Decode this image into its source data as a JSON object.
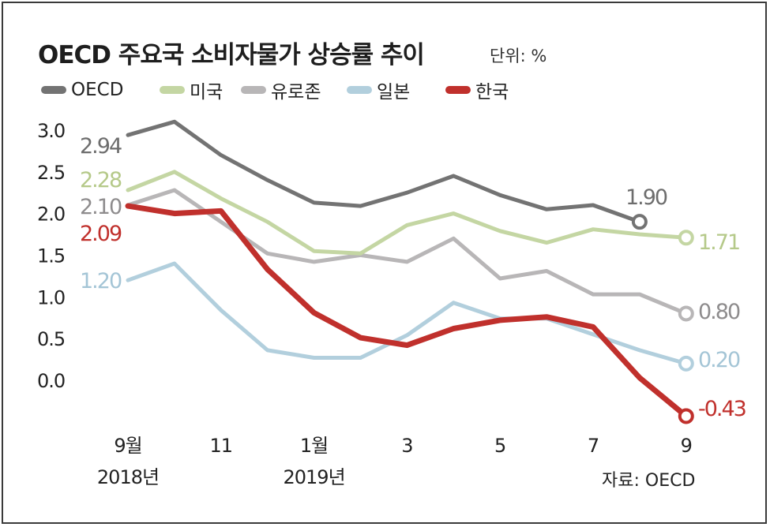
{
  "header": {
    "title": "OECD 주요국 소비자물가 상승률 추이",
    "unit": "단위: %"
  },
  "footer": {
    "source": "자료: OECD"
  },
  "chart_data": {
    "type": "line",
    "title": "OECD 주요국 소비자물가 상승률 추이",
    "unit": "단위: %",
    "x": [
      "2018-09",
      "2018-10",
      "2018-11",
      "2018-12",
      "2019-01",
      "2019-02",
      "2019-03",
      "2019-04",
      "2019-05",
      "2019-06",
      "2019-07",
      "2019-08",
      "2019-09"
    ],
    "x_tick_labels": [
      {
        "index": 0,
        "lines": [
          "9월",
          "2018년"
        ]
      },
      {
        "index": 2,
        "lines": [
          "11"
        ]
      },
      {
        "index": 4,
        "lines": [
          "1월",
          "2019년"
        ]
      },
      {
        "index": 6,
        "lines": [
          "3"
        ]
      },
      {
        "index": 8,
        "lines": [
          "5"
        ]
      },
      {
        "index": 10,
        "lines": [
          "7"
        ]
      },
      {
        "index": 12,
        "lines": [
          "9"
        ]
      }
    ],
    "ylim": [
      -0.4,
      3.2
    ],
    "y_ticks": [
      0.0,
      0.5,
      1.0,
      1.5,
      2.0,
      2.5,
      3.0
    ],
    "y_tick_labels": [
      "0.0",
      "0.5",
      "1.0",
      "1.5",
      "2.0",
      "2.5",
      "3.0"
    ],
    "grid": false,
    "legend_position": "top-left",
    "series": [
      {
        "name": "OECD",
        "color": "#737373",
        "values": [
          2.94,
          3.1,
          2.7,
          2.4,
          2.13,
          2.09,
          2.25,
          2.45,
          2.22,
          2.05,
          2.1,
          1.9,
          null
        ],
        "start_label": "2.94",
        "end_label": "1.90"
      },
      {
        "name": "미국",
        "color": "#c4d6a3",
        "values": [
          2.28,
          2.5,
          2.18,
          1.9,
          1.55,
          1.52,
          1.86,
          2.0,
          1.79,
          1.65,
          1.81,
          1.75,
          1.71
        ],
        "start_label": "2.28",
        "end_label": "1.71"
      },
      {
        "name": "유로존",
        "color": "#b8b6b7",
        "values": [
          2.1,
          2.28,
          1.9,
          1.52,
          1.42,
          1.5,
          1.42,
          1.7,
          1.22,
          1.31,
          1.03,
          1.03,
          0.8
        ],
        "start_label": "2.10",
        "end_label": "0.80"
      },
      {
        "name": "일본",
        "color": "#b2cfdd",
        "values": [
          1.2,
          1.4,
          0.84,
          0.36,
          0.27,
          0.27,
          0.54,
          0.93,
          0.74,
          0.74,
          0.55,
          0.36,
          0.2
        ],
        "start_label": "1.20",
        "end_label": "0.20"
      },
      {
        "name": "한국",
        "color": "#c0302c",
        "values": [
          2.09,
          2.0,
          2.03,
          1.33,
          0.81,
          0.51,
          0.42,
          0.62,
          0.72,
          0.76,
          0.64,
          0.03,
          -0.43
        ],
        "start_label": "2.09",
        "end_label": "-0.43"
      }
    ]
  }
}
